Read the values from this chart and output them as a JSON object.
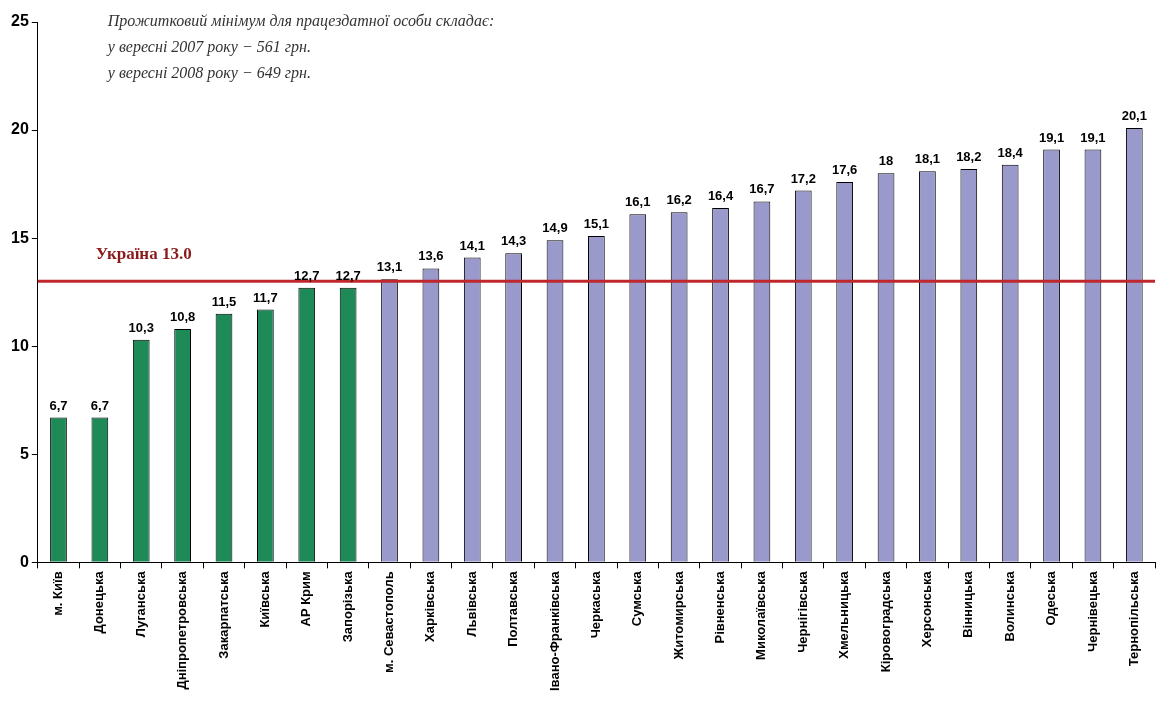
{
  "chart_data": {
    "type": "bar",
    "categories": [
      "м. Київ",
      "Донецька",
      "Луганська",
      "Дніпропетровська",
      "Закарпатська",
      "Київська",
      "АР Крим",
      "Запорізька",
      "м. Севастополь",
      "Харківська",
      "Львівська",
      "Полтавська",
      "Івано-Франківська",
      "Черкаська",
      "Сумська",
      "Житомирська",
      "Рівненська",
      "Миколаївська",
      "Чернігівська",
      "Хмельницька",
      "Кіровоградська",
      "Херсонська",
      "Вінницька",
      "Волинська",
      "Одеська",
      "Чернівецька",
      "Тернопільська"
    ],
    "values": [
      6.7,
      6.7,
      10.3,
      10.8,
      11.5,
      11.7,
      12.7,
      12.7,
      13.1,
      13.6,
      14.1,
      14.3,
      14.9,
      15.1,
      16.1,
      16.2,
      16.4,
      16.7,
      17.2,
      17.6,
      18,
      18.1,
      18.2,
      18.4,
      19.1,
      19.1,
      20.1
    ],
    "value_labels": [
      "6,7",
      "6,7",
      "10,3",
      "10,8",
      "11,5",
      "11,7",
      "12,7",
      "12,7",
      "13,1",
      "13,6",
      "14,1",
      "14,3",
      "14,9",
      "15,1",
      "16,1",
      "16,2",
      "16,4",
      "16,7",
      "17,2",
      "17,6",
      "18",
      "18,1",
      "18,2",
      "18,4",
      "19,1",
      "19,1",
      "20,1"
    ],
    "colors": [
      "#1e8a58",
      "#1e8a58",
      "#1e8a58",
      "#1e8a58",
      "#1e8a58",
      "#1e8a58",
      "#1e8a58",
      "#1e8a58",
      "#9999cc",
      "#9999cc",
      "#9999cc",
      "#9999cc",
      "#9999cc",
      "#9999cc",
      "#9999cc",
      "#9999cc",
      "#9999cc",
      "#9999cc",
      "#9999cc",
      "#9999cc",
      "#9999cc",
      "#9999cc",
      "#9999cc",
      "#9999cc",
      "#9999cc",
      "#9999cc",
      "#9999cc"
    ],
    "ylim": [
      0,
      25
    ],
    "yticks": [
      0,
      5,
      10,
      15,
      20,
      25
    ],
    "ref_lines": [
      {
        "axis": "y",
        "value": 13.0,
        "label": "Україна 13.0",
        "color": "#c0272d"
      }
    ],
    "annotations": [
      "Прожитковий мінімум для працездатної особи складає:",
      "у вересні 2007 року − 561 грн.",
      "у вересні 2008 року − 649 грн."
    ]
  }
}
